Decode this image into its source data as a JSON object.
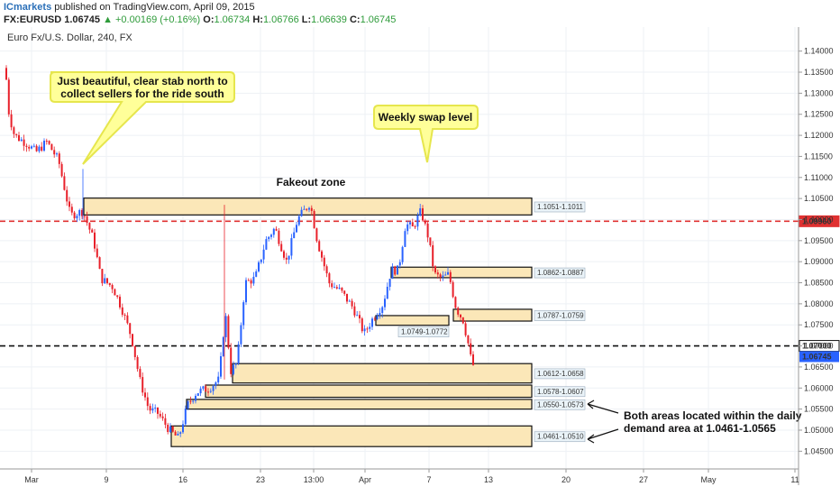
{
  "header": {
    "publisher": "ICmarkets",
    "published_text": "published on TradingView.com, April 09, 2015",
    "symbol": "FX:EURUSD",
    "last": "1.06745",
    "change": "▲ +0.00169 (+0.16%)",
    "o_label": "O:",
    "o": "1.06734",
    "h_label": "H:",
    "h": "1.06766",
    "l_label": "L:",
    "l": "1.06639",
    "c_label": "C:",
    "c": "1.06745"
  },
  "chart_data": {
    "type": "candlestick",
    "title": "Euro Fx/U.S. Dollar, 240, FX",
    "ylim": [
      1.0425,
      1.1425
    ],
    "y_ticks": [
      "1.14000",
      "1.13500",
      "1.13000",
      "1.12500",
      "1.12000",
      "1.11500",
      "1.11000",
      "1.10500",
      "1.10000",
      "1.09500",
      "1.09000",
      "1.08500",
      "1.08000",
      "1.07500",
      "1.07000",
      "1.06500",
      "1.06000",
      "1.05500",
      "1.05000",
      "1.04500"
    ],
    "x_ticks": [
      "Mar",
      "9",
      "16",
      "23",
      "13:00",
      "Apr",
      "7",
      "13",
      "20",
      "27",
      "May",
      "11"
    ],
    "horizontal_levels": [
      {
        "value": 1.0996,
        "label": "1.09960",
        "style": "dashed",
        "color": "#e03030"
      },
      {
        "value": 1.07,
        "label": "1.07000",
        "style": "dashed",
        "color": "#111111"
      }
    ],
    "last_price": {
      "value": 1.06745,
      "label": "1.06745",
      "color": "#2962ff"
    },
    "zones": [
      {
        "label": "1.1051-1.1011",
        "low": 1.1011,
        "high": 1.1051
      },
      {
        "label": "1.0862-1.0887",
        "low": 1.0862,
        "high": 1.0887
      },
      {
        "label": "1.0787-1.0759",
        "low": 1.0759,
        "high": 1.0787
      },
      {
        "label": "1.0749-1.0772",
        "low": 1.0749,
        "high": 1.0772
      },
      {
        "label": "1.0612-1.0658",
        "low": 1.0612,
        "high": 1.0658
      },
      {
        "label": "1.0578-1.0607",
        "low": 1.0578,
        "high": 1.0607
      },
      {
        "label": "1.0550-1.0573",
        "low": 1.055,
        "high": 1.0573
      },
      {
        "label": "1.0461-1.0510",
        "low": 1.0461,
        "high": 1.051
      }
    ],
    "annotations": {
      "callout1": [
        "Just beautiful, clear stab north to",
        "collect sellers for the ride south"
      ],
      "callout2": [
        "Weekly swap level"
      ],
      "fakeout": "Fakeout zone",
      "note": [
        "Both areas located within the daily",
        "demand area at 1.0461-1.0565"
      ]
    },
    "colors": {
      "up": "#2962ff",
      "down": "#e8202a",
      "zone_fill": "#fbe7b8",
      "callout_fill": "#ffff99",
      "callout_stroke": "#e6e64d"
    }
  }
}
